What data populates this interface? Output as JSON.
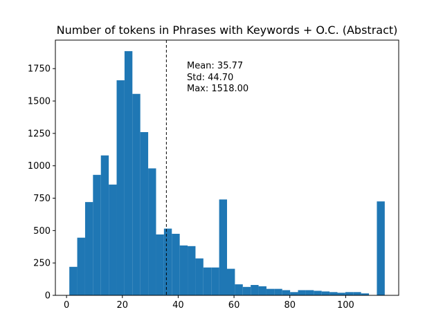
{
  "chart_data": {
    "type": "bar",
    "title": "Number of tokens in Phrases with Keywords + O.C. (Abstract)",
    "xlabel": "",
    "ylabel": "",
    "xlim": [
      -4,
      119
    ],
    "ylim": [
      0,
      1970
    ],
    "xticks": [
      0,
      20,
      40,
      60,
      80,
      100
    ],
    "yticks": [
      0,
      250,
      500,
      750,
      1000,
      1250,
      1500,
      1750
    ],
    "bin_start": 1,
    "bin_width": 2.825,
    "values": [
      220,
      445,
      720,
      930,
      1080,
      855,
      1660,
      1885,
      1555,
      1260,
      980,
      470,
      515,
      475,
      385,
      380,
      285,
      215,
      215,
      740,
      205,
      85,
      65,
      80,
      70,
      50,
      50,
      40,
      25,
      40,
      40,
      35,
      30,
      25,
      20,
      25,
      25,
      15,
      0,
      725
    ],
    "bar_color": "#1f77b4",
    "mean_line": {
      "x": 35.77,
      "color": "#000000",
      "style": "dashed"
    },
    "annotation": [
      "Mean: 35.77",
      "Std: 44.70",
      "Max: 1518.00"
    ],
    "grid": false,
    "legend": "none"
  }
}
